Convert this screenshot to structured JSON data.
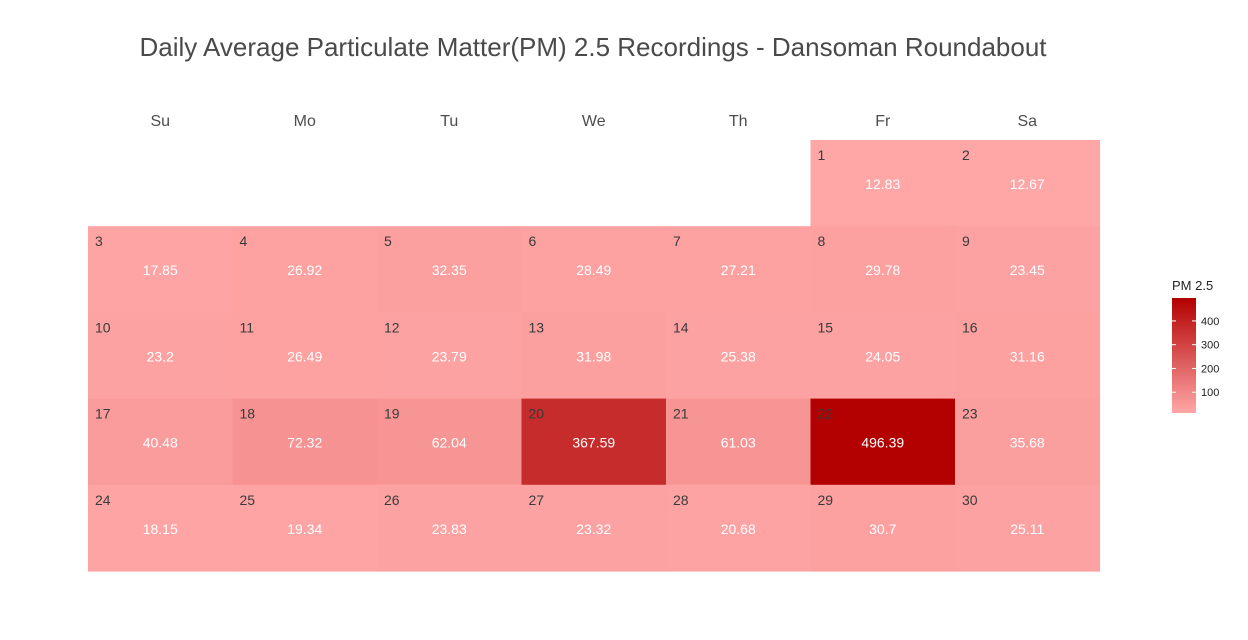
{
  "chart_data": {
    "type": "heatmap",
    "title": "Daily Average Particulate Matter(PM) 2.5 Recordings - Dansoman Roundabout",
    "weekdays": [
      "Su",
      "Mo",
      "Tu",
      "We",
      "Th",
      "Fr",
      "Sa"
    ],
    "first_weekday_index": 5,
    "days": [
      {
        "day": 1,
        "value": 12.83
      },
      {
        "day": 2,
        "value": 12.67
      },
      {
        "day": 3,
        "value": 17.85
      },
      {
        "day": 4,
        "value": 26.92
      },
      {
        "day": 5,
        "value": 32.35
      },
      {
        "day": 6,
        "value": 28.49
      },
      {
        "day": 7,
        "value": 27.21
      },
      {
        "day": 8,
        "value": 29.78
      },
      {
        "day": 9,
        "value": 23.45
      },
      {
        "day": 10,
        "value": 23.2
      },
      {
        "day": 11,
        "value": 26.49
      },
      {
        "day": 12,
        "value": 23.79
      },
      {
        "day": 13,
        "value": 31.98
      },
      {
        "day": 14,
        "value": 25.38
      },
      {
        "day": 15,
        "value": 24.05
      },
      {
        "day": 16,
        "value": 31.16
      },
      {
        "day": 17,
        "value": 40.48
      },
      {
        "day": 18,
        "value": 72.32
      },
      {
        "day": 19,
        "value": 62.04
      },
      {
        "day": 20,
        "value": 367.59
      },
      {
        "day": 21,
        "value": 61.03
      },
      {
        "day": 22,
        "value": 496.39
      },
      {
        "day": 23,
        "value": 35.68
      },
      {
        "day": 24,
        "value": 18.15
      },
      {
        "day": 25,
        "value": 19.34
      },
      {
        "day": 26,
        "value": 23.83
      },
      {
        "day": 27,
        "value": 23.32
      },
      {
        "day": 28,
        "value": 20.68
      },
      {
        "day": 29,
        "value": 30.7
      },
      {
        "day": 30,
        "value": 25.11
      }
    ],
    "legend": {
      "title": "PM 2.5",
      "ticks": [
        100,
        200,
        300,
        400
      ],
      "range": [
        12.67,
        496.39
      ],
      "low_color": "#ffa6a6",
      "high_color": "#b30000"
    }
  }
}
